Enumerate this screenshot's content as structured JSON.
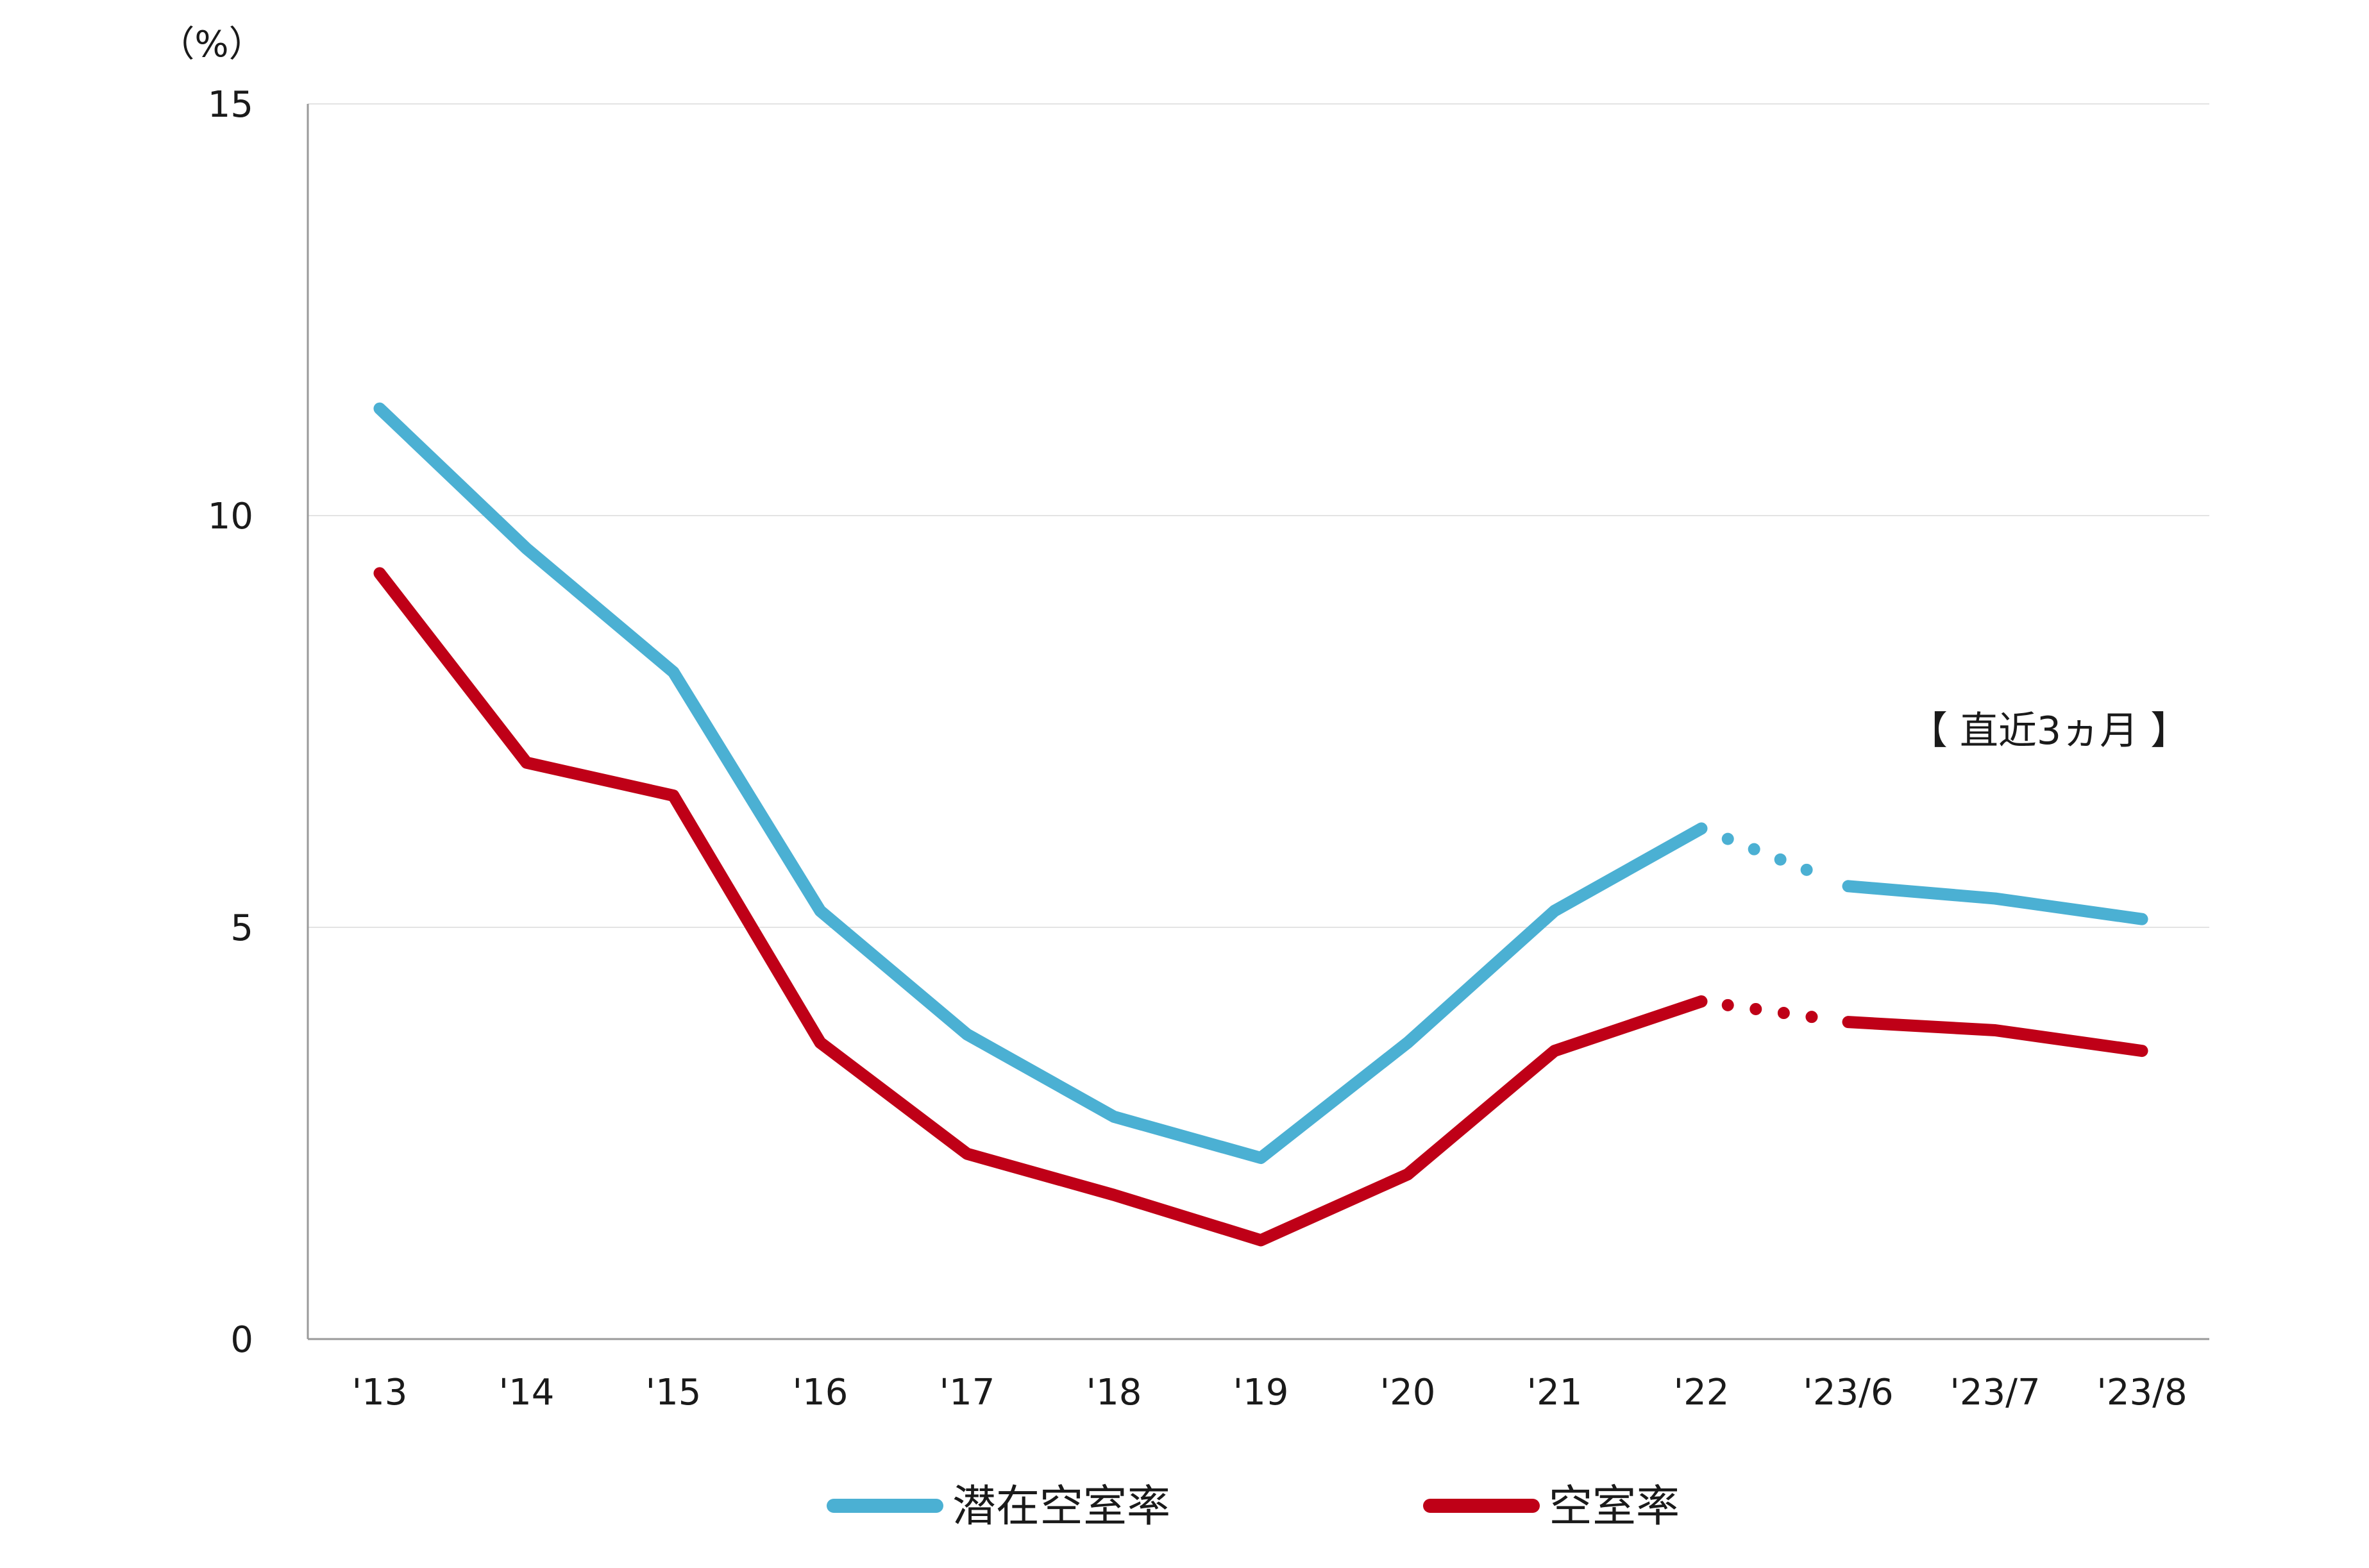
{
  "chart_data": {
    "type": "line",
    "ylabel": "（%）",
    "ylim": [
      0,
      15
    ],
    "yticks": [
      "0",
      "5",
      "10",
      "15"
    ],
    "grid": true,
    "legend_position": "bottom",
    "categories": [
      "'13",
      "'14",
      "'15",
      "'16",
      "'17",
      "'18",
      "'19",
      "'20",
      "'21",
      "'22",
      "'23/6",
      "'23/7",
      "'23/8"
    ],
    "annotation": "【 直近3ヵ月 】",
    "series": [
      {
        "name": "潜在空室率",
        "color": "#4bb0d3",
        "values": [
          11.3,
          9.6,
          8.1,
          5.2,
          3.7,
          2.7,
          2.2,
          3.6,
          5.2,
          6.2,
          5.5,
          5.35,
          5.1
        ]
      },
      {
        "name": "空室率",
        "color": "#bf0017",
        "values": [
          9.3,
          7.0,
          6.6,
          3.6,
          2.25,
          1.75,
          1.2,
          2.0,
          3.5,
          4.1,
          3.85,
          3.75,
          3.5
        ]
      }
    ]
  }
}
